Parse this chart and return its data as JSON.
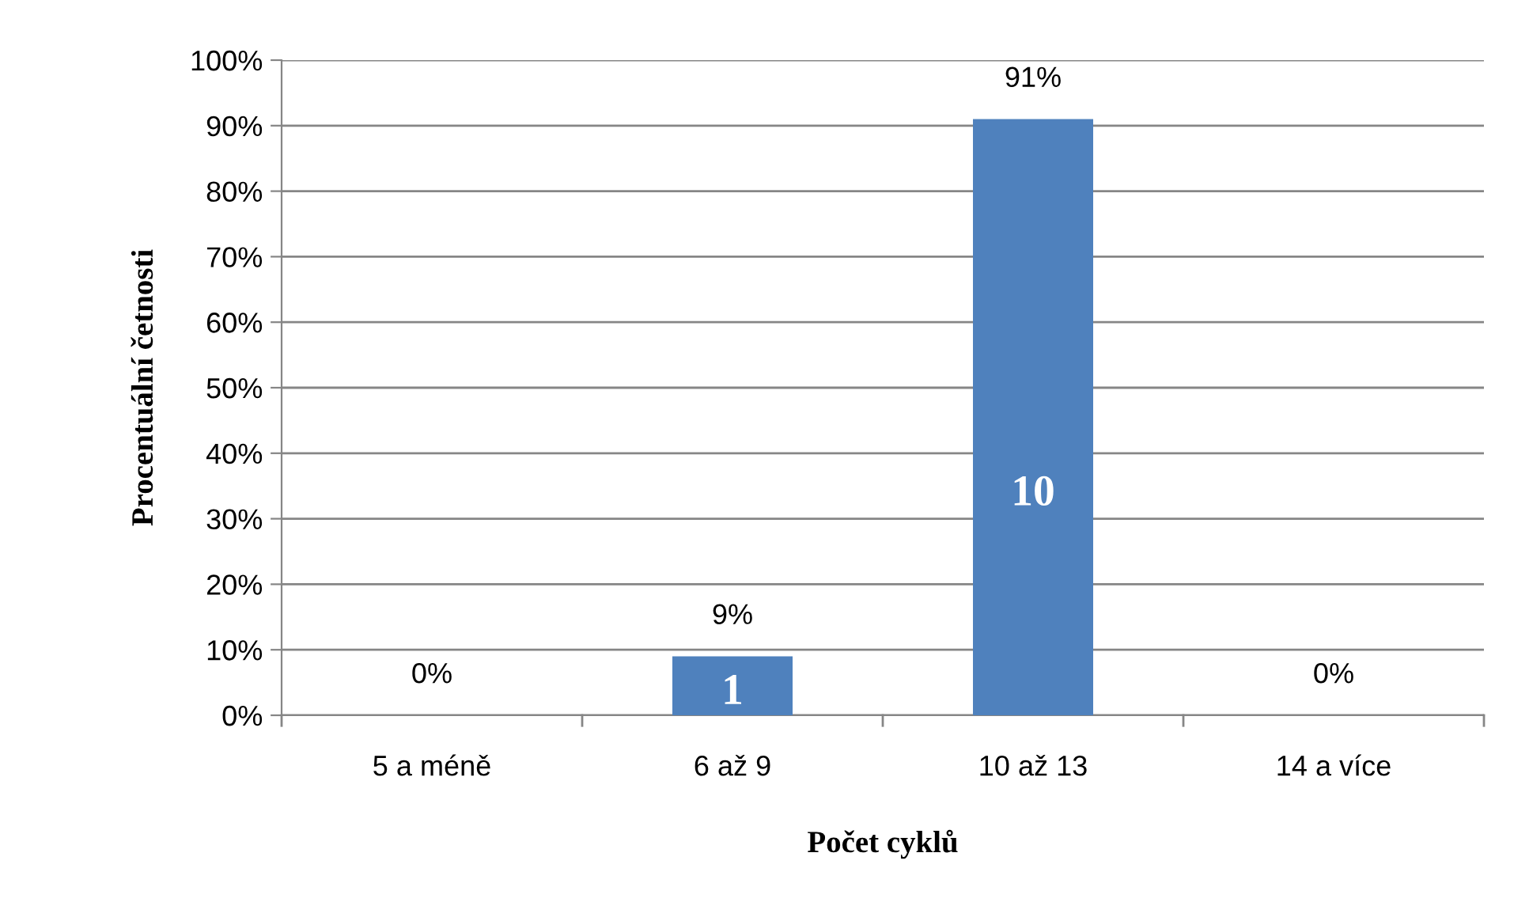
{
  "chart_data": {
    "type": "bar",
    "xlabel": "Počet cyklů",
    "ylabel": "Procentuální četnosti",
    "categories": [
      "5 a méně",
      "6 až 9",
      "10 až 13",
      "14 a více"
    ],
    "values": [
      0,
      9,
      91,
      0
    ],
    "color": "#4f81bd",
    "value_labels": [
      "0%",
      "9%",
      "91%",
      "0%"
    ],
    "annotations": [
      "1",
      "10"
    ],
    "ylim": [
      0,
      100
    ],
    "yticks": [
      {
        "value": 0,
        "label": "0%"
      },
      {
        "value": 10,
        "label": "10%"
      },
      {
        "value": 20,
        "label": "20%"
      },
      {
        "value": 30,
        "label": "30%"
      },
      {
        "value": 40,
        "label": "40%"
      },
      {
        "value": 50,
        "label": "50%"
      },
      {
        "value": 60,
        "label": "60%"
      },
      {
        "value": 70,
        "label": "70%"
      },
      {
        "value": 80,
        "label": "80%"
      },
      {
        "value": 90,
        "label": "90%"
      },
      {
        "value": 100,
        "label": "100%"
      }
    ],
    "grid": "y",
    "legend": false
  }
}
